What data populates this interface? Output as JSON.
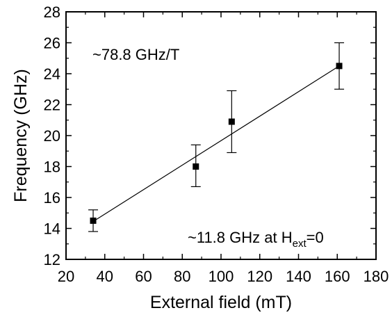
{
  "chart_data": {
    "type": "scatter",
    "xlabel": "External field (mT)",
    "ylabel": "Frequency (GHz)",
    "xlim": [
      20,
      180
    ],
    "ylim": [
      12,
      28
    ],
    "xticks": [
      "20",
      "40",
      "60",
      "80",
      "100",
      "120",
      "140",
      "160",
      "180"
    ],
    "yticks": [
      "12",
      "14",
      "16",
      "18",
      "20",
      "22",
      "24",
      "26",
      "28"
    ],
    "grid": false,
    "series": [
      {
        "marker": "square",
        "color": "#000000",
        "points": [
          {
            "x": 34,
            "y": 14.5,
            "err_low": 13.8,
            "err_high": 15.2
          },
          {
            "x": 87,
            "y": 18.0,
            "err_low": 16.7,
            "err_high": 19.4
          },
          {
            "x": 105.5,
            "y": 20.9,
            "err_low": 18.9,
            "err_high": 22.9
          },
          {
            "x": 161,
            "y": 24.5,
            "err_low": 23.0,
            "err_high": 26.0
          }
        ]
      }
    ],
    "fit_line": {
      "x": [
        34,
        161
      ],
      "y": [
        14.45,
        24.5
      ],
      "color": "#000000"
    },
    "annotations": {
      "slope": "~78.8 GHz/T",
      "intercept_main": "~11.8 GHz at H",
      "intercept_sub": "ext",
      "intercept_tail": "=0"
    }
  }
}
